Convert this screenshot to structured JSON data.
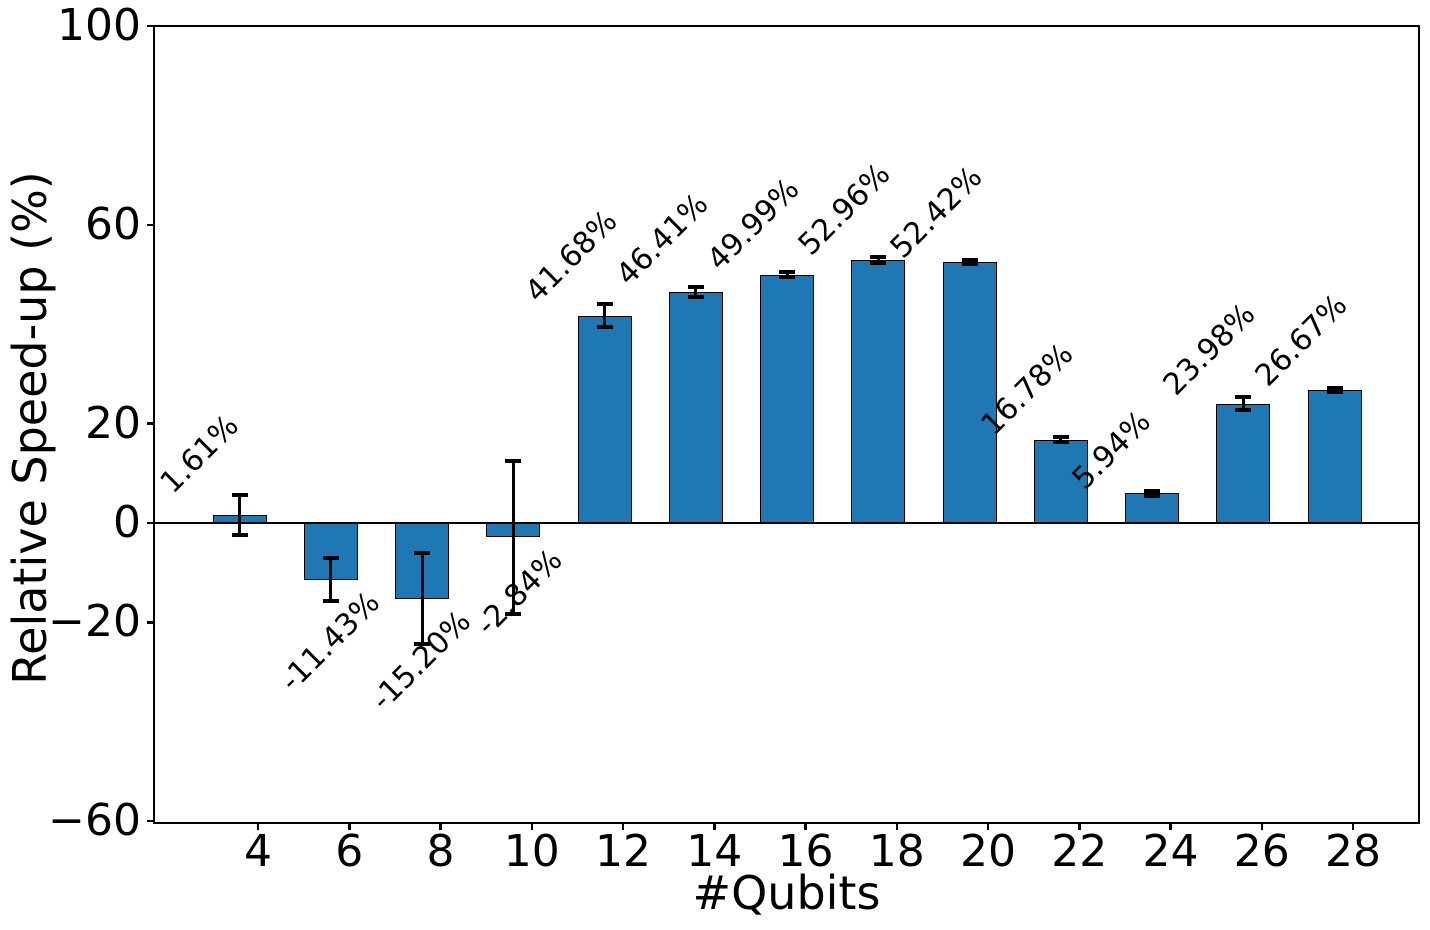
{
  "chart_data": {
    "type": "bar",
    "title": "",
    "xlabel": "#Qubits",
    "ylabel": "Relative Speed-up (%)",
    "categories": [
      4,
      6,
      8,
      10,
      12,
      14,
      16,
      18,
      20,
      22,
      24,
      26,
      28
    ],
    "values": [
      1.61,
      -11.43,
      -15.2,
      -2.84,
      41.68,
      46.41,
      49.99,
      52.96,
      52.42,
      16.78,
      5.94,
      23.98,
      26.67
    ],
    "errors": [
      4.0,
      4.3,
      9.1,
      15.4,
      2.3,
      1.0,
      0.5,
      0.6,
      0.4,
      0.5,
      0.5,
      1.3,
      0.4
    ],
    "labels": [
      "1.61%",
      "-11.43%",
      "-15.20%",
      "-2.84%",
      "41.68%",
      "46.41%",
      "49.99%",
      "52.96%",
      "52.42%",
      "16.78%",
      "5.94%",
      "23.98%",
      "26.67%"
    ],
    "xtick_labels": [
      "4",
      "6",
      "8",
      "10",
      "12",
      "14",
      "16",
      "18",
      "20",
      "22",
      "24",
      "26",
      "28"
    ],
    "yticks": [
      100,
      60,
      20,
      0,
      -20,
      -60
    ],
    "ytick_labels": [
      "100",
      "60",
      "20",
      "0",
      "−20",
      "−60"
    ],
    "ylim": [
      -60,
      100
    ],
    "bar_color": "#1f77b4",
    "bar_edge_color": "#000000",
    "error_color": "#000000",
    "label_rotation": 45,
    "grid": false,
    "legend": false
  }
}
